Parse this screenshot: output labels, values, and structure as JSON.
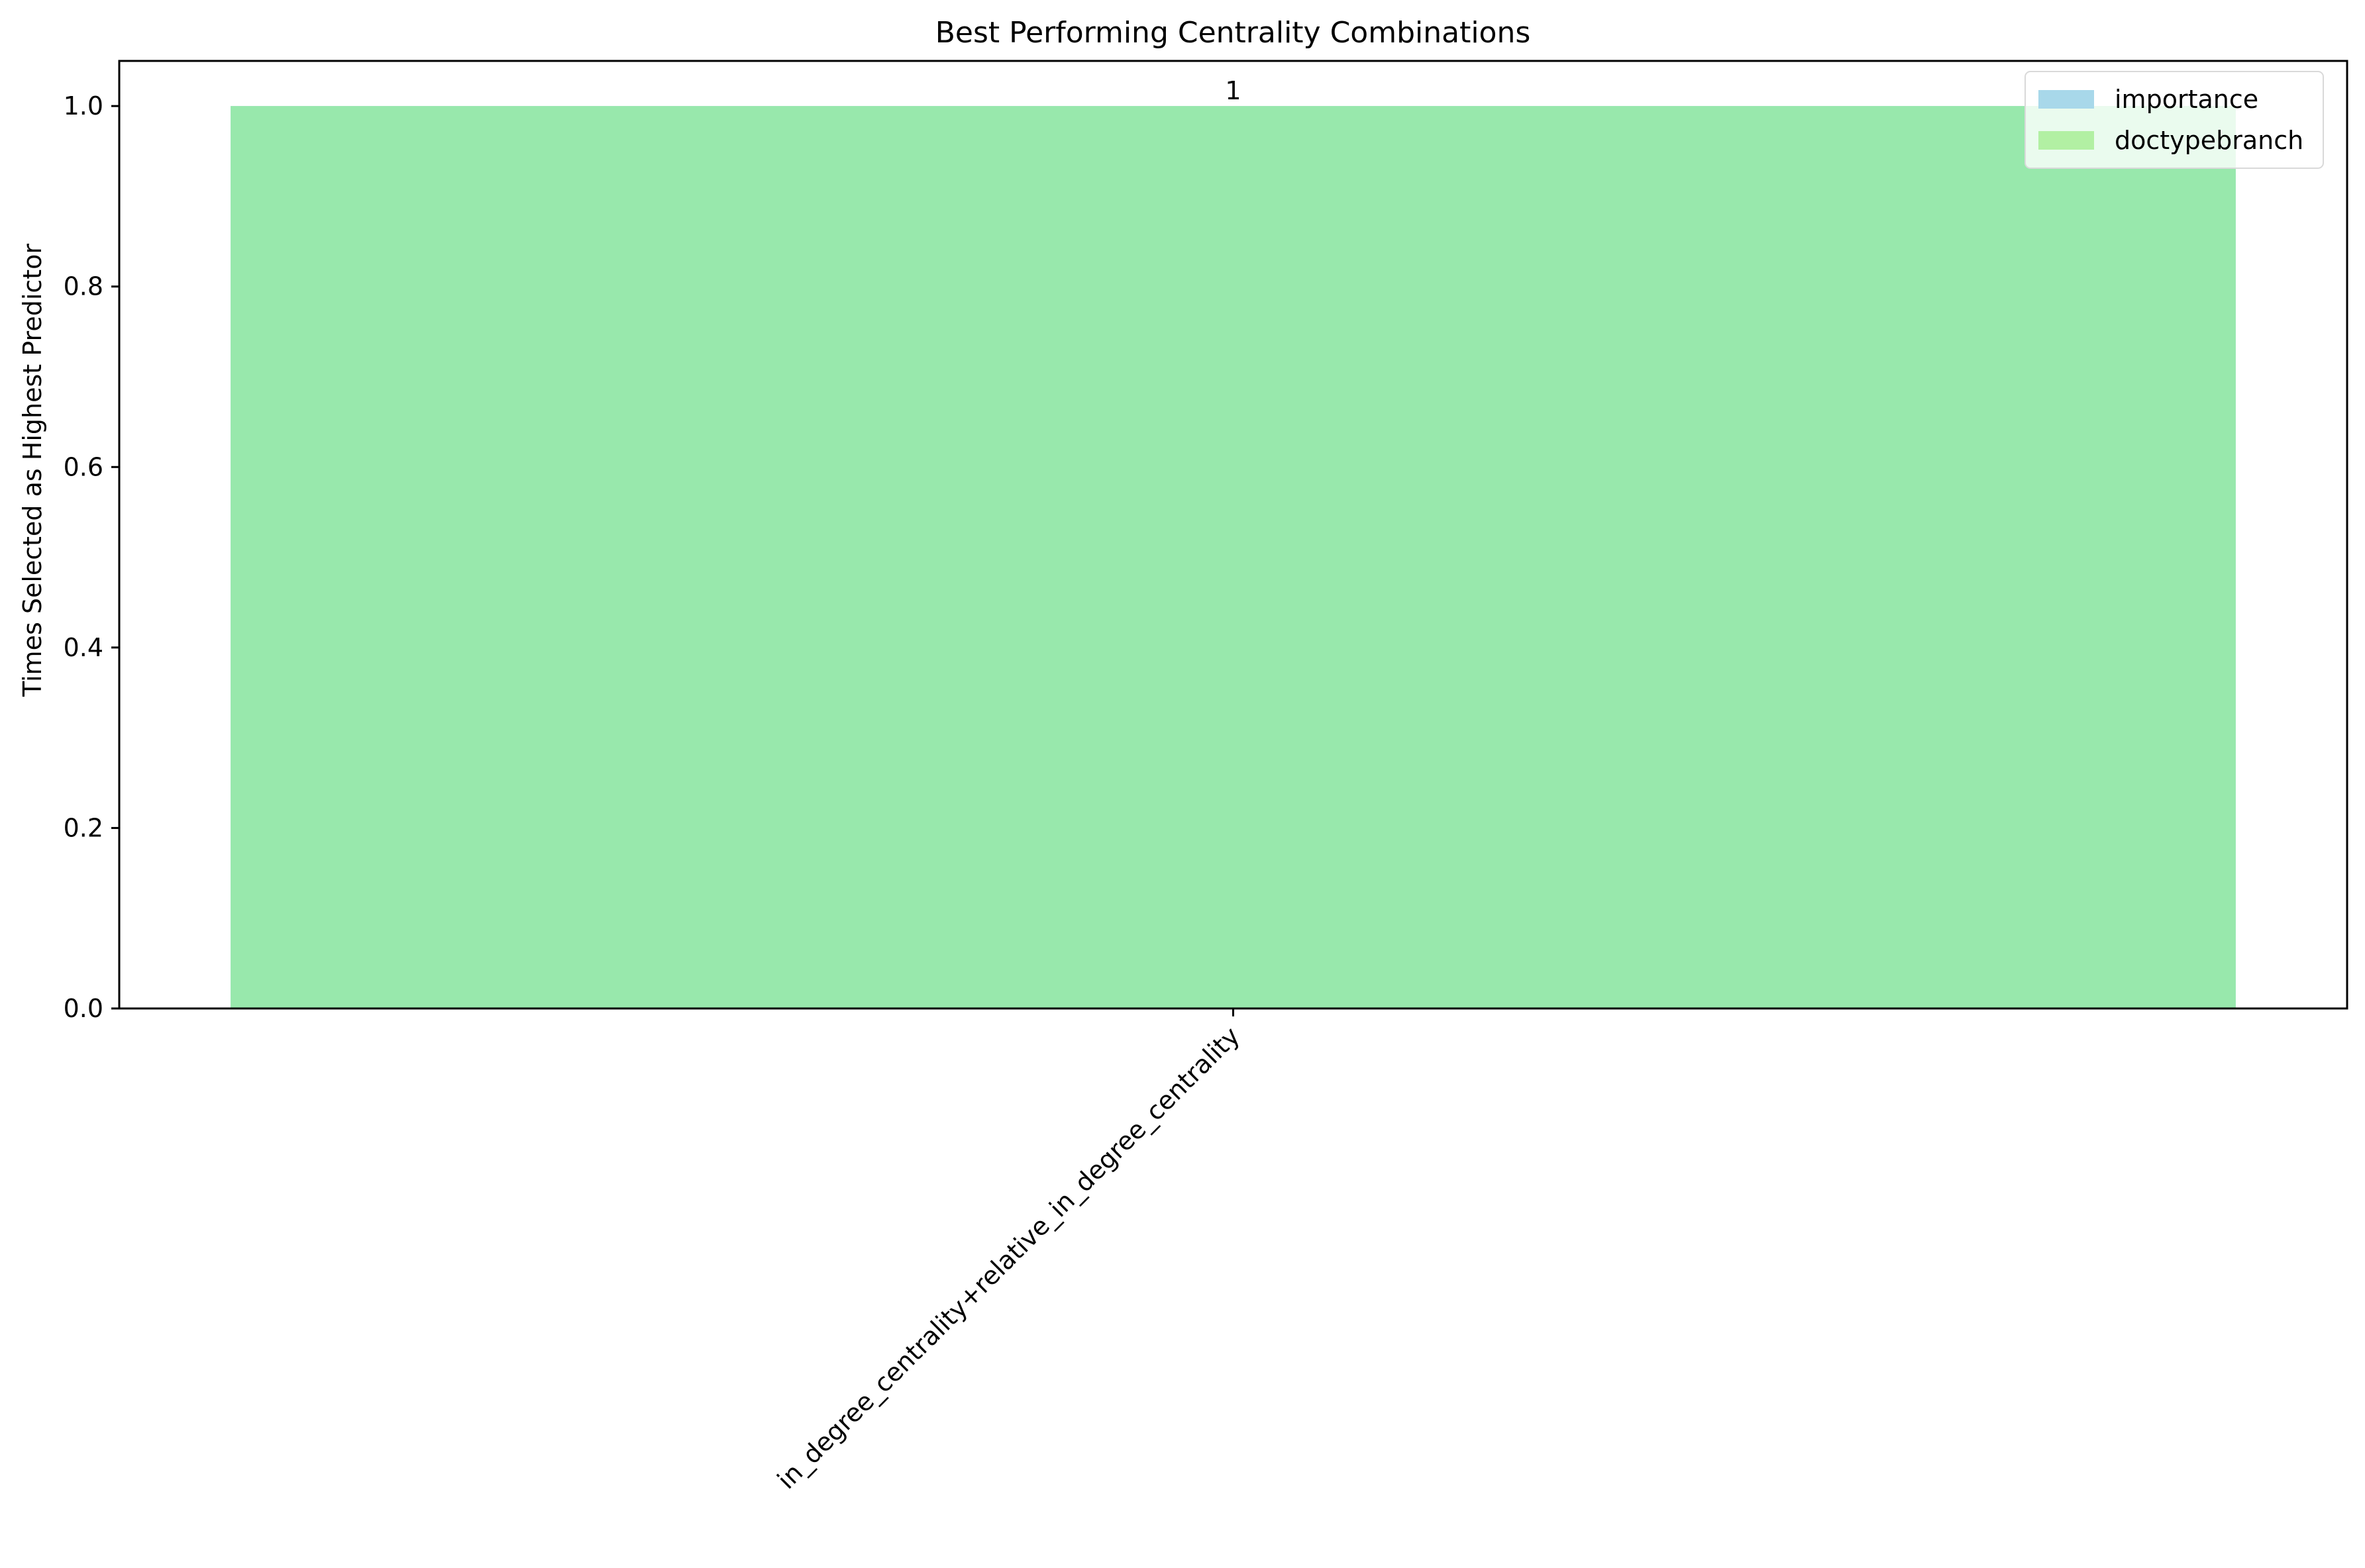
{
  "chart_data": {
    "type": "bar",
    "title": "Best Performing Centrality Combinations",
    "xlabel": "",
    "ylabel": "Times Selected as Highest Predictor",
    "categories": [
      "in_degree_centrality+relative_in_degree_centrality"
    ],
    "series": [
      {
        "name": "importance",
        "values": [
          1
        ],
        "color": "#a8d8ea"
      },
      {
        "name": "doctypebranch",
        "values": [
          1
        ],
        "color": "#98e8ac"
      }
    ],
    "bar_labels": [
      "1"
    ],
    "ylim": [
      0,
      1.05
    ],
    "yticks": [
      "0.0",
      "0.2",
      "0.4",
      "0.6",
      "0.8",
      "1.0"
    ],
    "grid": false,
    "legend": {
      "position": "top-right",
      "entries": [
        {
          "label": "importance",
          "color": "#a8d8ea"
        },
        {
          "label": "doctypebranch",
          "color": "#b2f0a3"
        }
      ]
    }
  }
}
